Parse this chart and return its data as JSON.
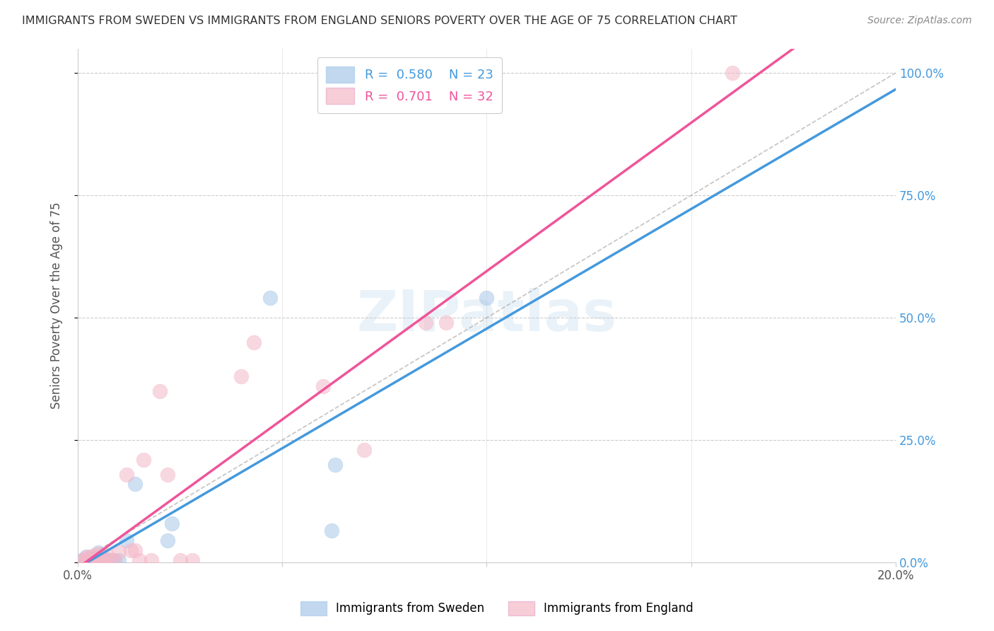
{
  "title": "IMMIGRANTS FROM SWEDEN VS IMMIGRANTS FROM ENGLAND SENIORS POVERTY OVER THE AGE OF 75 CORRELATION CHART",
  "source": "Source: ZipAtlas.com",
  "ylabel": "Seniors Poverty Over the Age of 75",
  "sweden_R": 0.58,
  "sweden_N": 23,
  "england_R": 0.701,
  "england_N": 32,
  "xlim": [
    0.0,
    0.2
  ],
  "ylim": [
    0.0,
    1.05
  ],
  "sweden_color": "#a8c8e8",
  "england_color": "#f4b8c8",
  "sweden_line_color": "#4499dd",
  "england_line_color": "#ee5599",
  "diagonal_color": "#aaaaaa",
  "sweden_scatter": [
    [
      0.001,
      0.005
    ],
    [
      0.002,
      0.005
    ],
    [
      0.002,
      0.012
    ],
    [
      0.003,
      0.005
    ],
    [
      0.003,
      0.008
    ],
    [
      0.004,
      0.005
    ],
    [
      0.004,
      0.01
    ],
    [
      0.005,
      0.005
    ],
    [
      0.005,
      0.02
    ],
    [
      0.006,
      0.005
    ],
    [
      0.006,
      0.012
    ],
    [
      0.007,
      0.005
    ],
    [
      0.008,
      0.005
    ],
    [
      0.009,
      0.005
    ],
    [
      0.01,
      0.005
    ],
    [
      0.012,
      0.045
    ],
    [
      0.014,
      0.16
    ],
    [
      0.022,
      0.045
    ],
    [
      0.023,
      0.08
    ],
    [
      0.047,
      0.54
    ],
    [
      0.062,
      0.065
    ],
    [
      0.063,
      0.2
    ],
    [
      0.1,
      0.54
    ]
  ],
  "england_scatter": [
    [
      0.001,
      0.005
    ],
    [
      0.002,
      0.005
    ],
    [
      0.002,
      0.01
    ],
    [
      0.003,
      0.005
    ],
    [
      0.003,
      0.012
    ],
    [
      0.004,
      0.005
    ],
    [
      0.004,
      0.015
    ],
    [
      0.005,
      0.005
    ],
    [
      0.005,
      0.018
    ],
    [
      0.006,
      0.005
    ],
    [
      0.006,
      0.008
    ],
    [
      0.007,
      0.015
    ],
    [
      0.008,
      0.005
    ],
    [
      0.009,
      0.005
    ],
    [
      0.01,
      0.022
    ],
    [
      0.012,
      0.18
    ],
    [
      0.013,
      0.025
    ],
    [
      0.014,
      0.025
    ],
    [
      0.015,
      0.005
    ],
    [
      0.016,
      0.21
    ],
    [
      0.018,
      0.005
    ],
    [
      0.02,
      0.35
    ],
    [
      0.022,
      0.18
    ],
    [
      0.025,
      0.005
    ],
    [
      0.028,
      0.005
    ],
    [
      0.04,
      0.38
    ],
    [
      0.043,
      0.45
    ],
    [
      0.06,
      0.36
    ],
    [
      0.07,
      0.23
    ],
    [
      0.085,
      0.49
    ],
    [
      0.09,
      0.49
    ],
    [
      0.16,
      1.0
    ]
  ],
  "watermark": "ZIPatlas",
  "background_color": "#ffffff",
  "grid_color": "#cccccc",
  "title_fontsize": 11.5,
  "source_fontsize": 10,
  "legend_fontsize": 13,
  "ylabel_fontsize": 12,
  "tick_fontsize": 12,
  "right_tick_color": "#4499dd"
}
